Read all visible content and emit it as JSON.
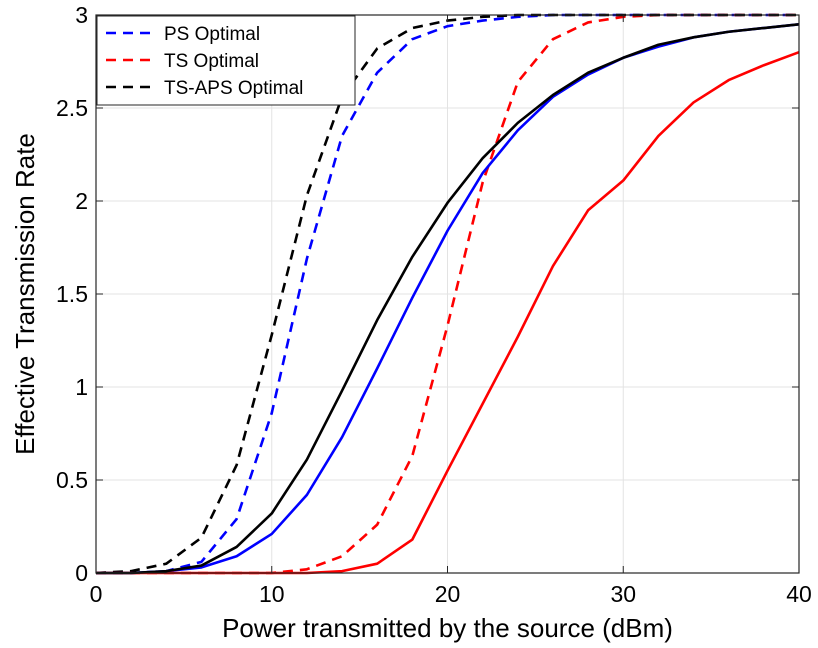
{
  "chart_data": {
    "type": "line",
    "title": "",
    "xlabel": "Power transmitted by the source (dBm)",
    "ylabel": "Effective Transmission Rate",
    "xlim": [
      0,
      40
    ],
    "ylim": [
      0,
      3
    ],
    "xticks": [
      0,
      10,
      20,
      30,
      40
    ],
    "xtick_labels": [
      "0",
      "10",
      "20",
      "30",
      "40"
    ],
    "yticks": [
      0,
      0.5,
      1,
      1.5,
      2,
      2.5,
      3
    ],
    "ytick_labels": [
      "0",
      "0.5",
      "1",
      "1.5",
      "2",
      "2.5",
      "3"
    ],
    "grid": true,
    "legend_position": "top-left",
    "x": [
      0,
      2,
      4,
      6,
      8,
      10,
      12,
      14,
      16,
      18,
      20,
      22,
      24,
      26,
      28,
      30,
      32,
      34,
      36,
      38,
      40
    ],
    "series": [
      {
        "name": "PS Optimal",
        "color": "#0000ff",
        "dash": true,
        "values": [
          0.0,
          0.0,
          0.01,
          0.06,
          0.29,
          0.86,
          1.69,
          2.35,
          2.69,
          2.87,
          2.94,
          2.97,
          2.99,
          3.0,
          3.0,
          3.0,
          3.0,
          3.0,
          3.0,
          3.0,
          3.0
        ]
      },
      {
        "name": "TS Optimal",
        "color": "#ff0000",
        "dash": true,
        "values": [
          0.0,
          0.0,
          0.0,
          0.0,
          0.0,
          0.0,
          0.02,
          0.09,
          0.26,
          0.63,
          1.33,
          2.1,
          2.64,
          2.87,
          2.96,
          2.99,
          3.0,
          3.0,
          3.0,
          3.0,
          3.0
        ]
      },
      {
        "name": "TS-APS Optimal",
        "color": "#000000",
        "dash": true,
        "values": [
          0.0,
          0.01,
          0.05,
          0.19,
          0.58,
          1.28,
          2.03,
          2.56,
          2.82,
          2.93,
          2.97,
          2.99,
          3.0,
          3.0,
          3.0,
          3.0,
          3.0,
          3.0,
          3.0,
          3.0,
          3.0
        ]
      },
      {
        "color": "#0000ff",
        "dash": false,
        "values": [
          0.0,
          0.0,
          0.01,
          0.03,
          0.09,
          0.21,
          0.42,
          0.73,
          1.1,
          1.48,
          1.84,
          2.15,
          2.38,
          2.56,
          2.68,
          2.77,
          2.83,
          2.88,
          2.91,
          2.93,
          2.95
        ]
      },
      {
        "color": "#ff0000",
        "dash": false,
        "values": [
          0.0,
          0.0,
          0.0,
          0.0,
          0.0,
          0.0,
          0.0,
          0.01,
          0.05,
          0.18,
          0.55,
          0.91,
          1.27,
          1.65,
          1.95,
          2.11,
          2.35,
          2.53,
          2.65,
          2.73,
          2.8
        ]
      },
      {
        "color": "#000000",
        "dash": false,
        "values": [
          0.0,
          0.0,
          0.01,
          0.04,
          0.14,
          0.32,
          0.61,
          0.98,
          1.36,
          1.7,
          1.99,
          2.23,
          2.42,
          2.57,
          2.69,
          2.77,
          2.84,
          2.88,
          2.91,
          2.93,
          2.95
        ]
      }
    ]
  }
}
